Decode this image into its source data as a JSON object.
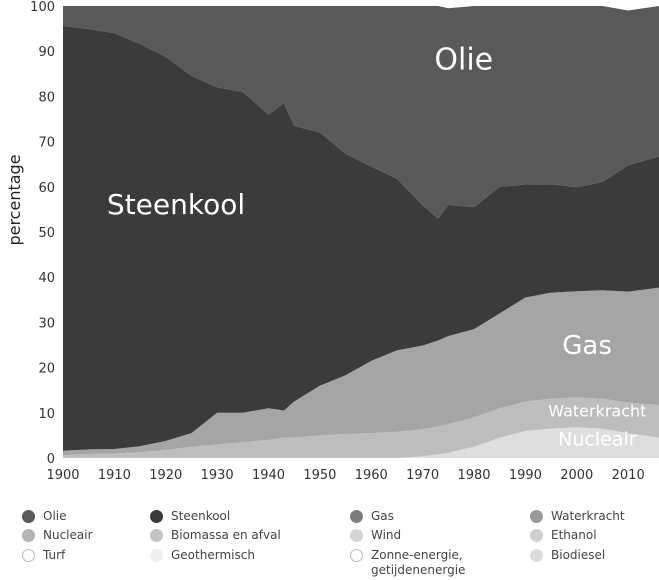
{
  "chart_data": {
    "type": "area",
    "stacked": true,
    "ylabel": "percentage",
    "xlabel": "",
    "xlim": [
      1900,
      2016
    ],
    "ylim": [
      0,
      100
    ],
    "xticks": [
      "1900",
      "1910",
      "1920",
      "1930",
      "1940",
      "1950",
      "1960",
      "1970",
      "1980",
      "1990",
      "2000",
      "2010"
    ],
    "yticks": [
      "0",
      "10",
      "20",
      "30",
      "40",
      "50",
      "60",
      "70",
      "80",
      "90",
      "100"
    ],
    "x": [
      1900,
      1905,
      1910,
      1915,
      1920,
      1925,
      1930,
      1935,
      1940,
      1943,
      1945,
      1950,
      1955,
      1960,
      1965,
      1970,
      1973,
      1975,
      1980,
      1985,
      1990,
      1995,
      2000,
      2005,
      2010,
      2016
    ],
    "series": [
      {
        "name": "Nucleair",
        "color": "#dedede",
        "values": [
          0,
          0,
          0,
          0,
          0,
          0,
          0,
          0,
          0,
          0,
          0,
          0,
          0,
          0,
          0,
          0.4,
          0.8,
          1.2,
          2.5,
          4.5,
          6,
          6.5,
          6.8,
          6.5,
          5.5,
          4.5
        ]
      },
      {
        "name": "Waterkracht",
        "color": "#bdbdbd",
        "values": [
          0.6,
          0.9,
          1.0,
          1.3,
          1.8,
          2.5,
          3,
          3.5,
          4,
          4.5,
          4.5,
          5,
          5.3,
          5.5,
          5.8,
          6,
          6.2,
          6.3,
          6.5,
          6.5,
          6.5,
          6.6,
          6.6,
          6.6,
          6.8,
          7.2
        ]
      },
      {
        "name": "Gas",
        "color": "#a5a5a5",
        "values": [
          1,
          1,
          1,
          1.3,
          2,
          3,
          7,
          6.5,
          7,
          6,
          8,
          11,
          13,
          16,
          18,
          18.5,
          19,
          19.5,
          19.5,
          21,
          23,
          23.5,
          23.5,
          24,
          24.5,
          26
        ]
      },
      {
        "name": "Steenkool",
        "color": "#3b3b3b",
        "values": [
          94,
          93,
          92,
          89,
          85,
          79,
          72,
          71,
          65,
          68,
          61,
          56,
          49,
          43,
          38,
          31,
          27,
          29,
          27,
          28,
          25,
          24,
          23,
          24,
          28,
          29
        ]
      },
      {
        "name": "Olie",
        "color": "#595959",
        "values": [
          4.4,
          5.1,
          6,
          8.4,
          11.2,
          15.5,
          18,
          19,
          24,
          21.5,
          26.5,
          28,
          32.7,
          35.5,
          38.2,
          44.1,
          47,
          43.5,
          44.5,
          40,
          39.5,
          39.4,
          40.1,
          38.9,
          34.2,
          33.3
        ]
      }
    ],
    "area_labels": [
      {
        "text": "Olie",
        "series": "Olie"
      },
      {
        "text": "Steenkool",
        "series": "Steenkool"
      },
      {
        "text": "Gas",
        "series": "Gas"
      },
      {
        "text": "Waterkracht",
        "series": "Waterkracht"
      },
      {
        "text": "Nucleair",
        "series": "Nucleair"
      }
    ],
    "legend": [
      {
        "label": "Olie",
        "color": "#595959"
      },
      {
        "label": "Steenkool",
        "color": "#3b3b3b"
      },
      {
        "label": "Gas",
        "color": "#7d7d7d"
      },
      {
        "label": "Waterkracht",
        "color": "#9a9a9a"
      },
      {
        "label": "Nucleair",
        "color": "#b3b3b3"
      },
      {
        "label": "Biomassa en afval",
        "color": "#c4c4c4"
      },
      {
        "label": "Wind",
        "color": "#d4d4d4"
      },
      {
        "label": "Ethanol",
        "color": "#d0d0d0"
      },
      {
        "label": "Turf",
        "color": "#ffffff"
      },
      {
        "label": "Geothermisch",
        "color": "#eeeeee"
      },
      {
        "label": "Zonne-energie,",
        "label2": "getijdenenergie",
        "color": "#ffffff"
      },
      {
        "label": "Biodiesel",
        "color": "#dcdcdc"
      }
    ],
    "legend_position": "bottom"
  }
}
